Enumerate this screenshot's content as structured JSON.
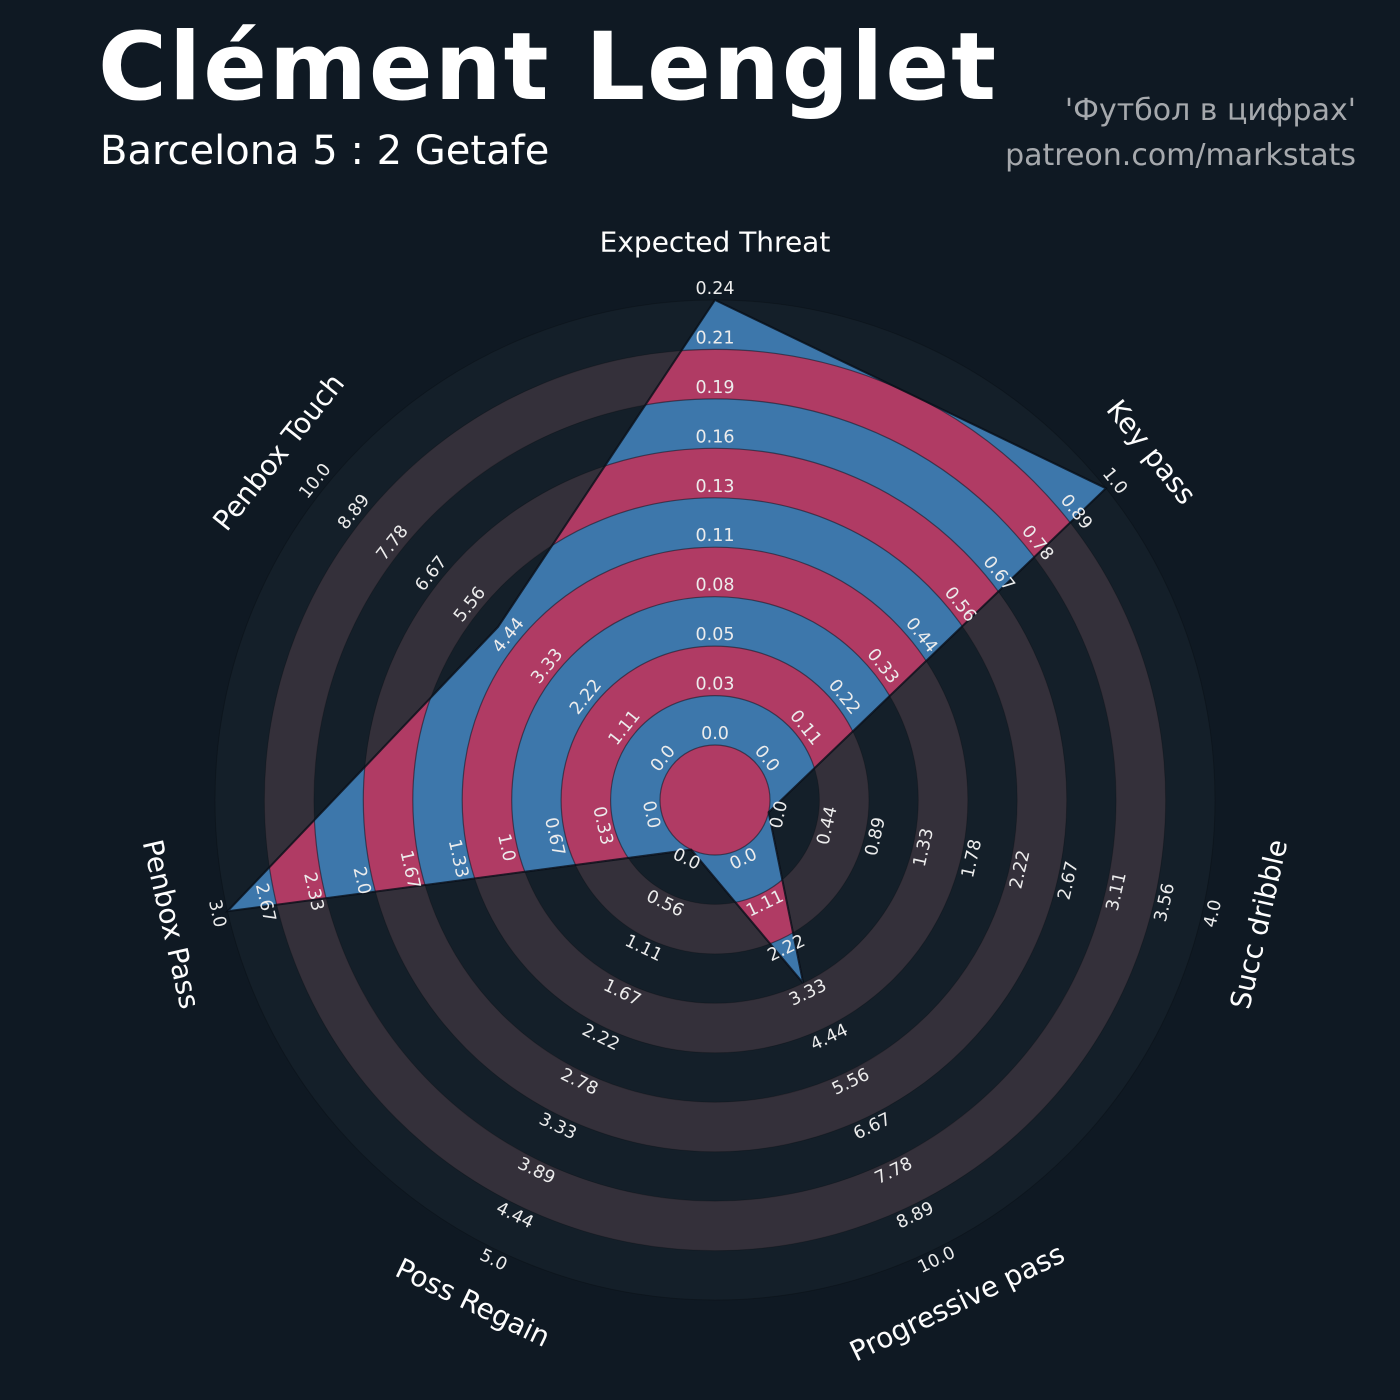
{
  "header": {
    "title": "Clément Lenglet",
    "subtitle": "Barcelona 5 : 2 Getafe",
    "credit_line1": "'Футбол в цифрах'",
    "credit_line2": "patreon.com/markstats"
  },
  "colors": {
    "background": "#0f1923",
    "ring_dark": "#141f29",
    "ring_light": "#34303a",
    "radar_fill": "#3d77ab",
    "radar_ring_fill": "#b03b64",
    "tick_text": "#ececec",
    "label_text": "#fdfdfd",
    "title_text": "#ffffff",
    "credit_text": "#a6a9ad"
  },
  "chart_data": {
    "type": "radar",
    "title": "Clément Lenglet",
    "subtitle": "Barcelona 5 : 2 Getafe",
    "legend": "none",
    "grid": "concentric-rings",
    "rings": 10,
    "params": [
      "Expected Threat",
      "Key pass",
      "Succ dribble",
      "Progressive pass",
      "Poss Regain",
      "Penbox Pass",
      "Penbox Touch"
    ],
    "ranges": [
      [
        0,
        0.24
      ],
      [
        0,
        1.0
      ],
      [
        0,
        4.0
      ],
      [
        0,
        10.0
      ],
      [
        0,
        5.0
      ],
      [
        0,
        3.0
      ],
      [
        0,
        10.0
      ]
    ],
    "values": [
      0.24,
      1.0,
      0.0,
      3.33,
      0.0,
      3.0,
      5.0
    ],
    "tick_labels": [
      [
        "0.0",
        "0.03",
        "0.05",
        "0.08",
        "0.11",
        "0.13",
        "0.16",
        "0.19",
        "0.21",
        "0.24"
      ],
      [
        "0.0",
        "0.11",
        "0.22",
        "0.33",
        "0.44",
        "0.56",
        "0.67",
        "0.78",
        "0.89",
        "1.0"
      ],
      [
        "0.0",
        "0.44",
        "0.89",
        "1.33",
        "1.78",
        "2.22",
        "2.67",
        "3.11",
        "3.56",
        "4.0"
      ],
      [
        "0.0",
        "1.11",
        "2.22",
        "3.33",
        "4.44",
        "5.56",
        "6.67",
        "7.78",
        "8.89",
        "10.0"
      ],
      [
        "0.0",
        "0.56",
        "1.11",
        "1.67",
        "2.22",
        "2.78",
        "3.33",
        "3.89",
        "4.44",
        "5.0"
      ],
      [
        "0.0",
        "0.33",
        "0.67",
        "1.0",
        "1.33",
        "1.67",
        "2.0",
        "2.33",
        "2.67",
        "3.0"
      ],
      [
        "0.0",
        "1.11",
        "2.22",
        "3.33",
        "4.44",
        "5.56",
        "6.67",
        "7.78",
        "8.89",
        "10.0"
      ]
    ]
  }
}
